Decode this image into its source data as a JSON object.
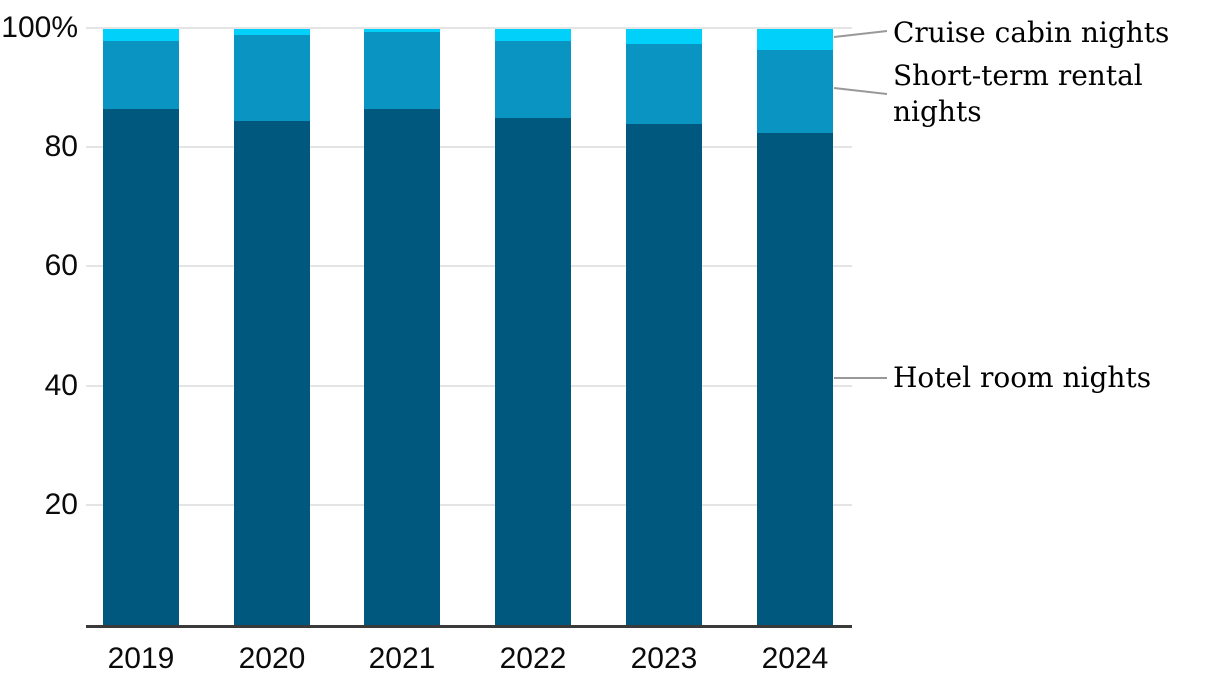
{
  "chart_data": {
    "type": "bar",
    "variant": "stacked-column-percent",
    "title": "",
    "xlabel": "",
    "ylabel": "",
    "categories": [
      "2019",
      "2020",
      "2021",
      "2022",
      "2023",
      "2024"
    ],
    "series": [
      {
        "name": "Hotel room nights",
        "color": "#00587E",
        "values": [
          86.5,
          84.5,
          86.5,
          85.0,
          84.0,
          82.5
        ]
      },
      {
        "name": "Short-term rental nights",
        "color": "#0994C1",
        "values": [
          11.5,
          14.5,
          13.0,
          13.0,
          13.5,
          14.0
        ]
      },
      {
        "name": "Cruise cabin nights",
        "color": "#00D0FA",
        "values": [
          2.0,
          1.0,
          0.5,
          2.0,
          2.5,
          3.5
        ]
      }
    ],
    "ylim": [
      0,
      100
    ],
    "yticks": [
      20,
      40,
      60,
      80,
      100
    ],
    "ytick_labels": [
      "20",
      "40",
      "60",
      "80",
      "100%"
    ],
    "grid": true,
    "legend_position": "right-annotations"
  },
  "colors": {
    "gridline": "#e4e4e4",
    "axis_line": "#3a3a3a",
    "leader_line": "#999999",
    "label_text": "#0b0b0b"
  }
}
